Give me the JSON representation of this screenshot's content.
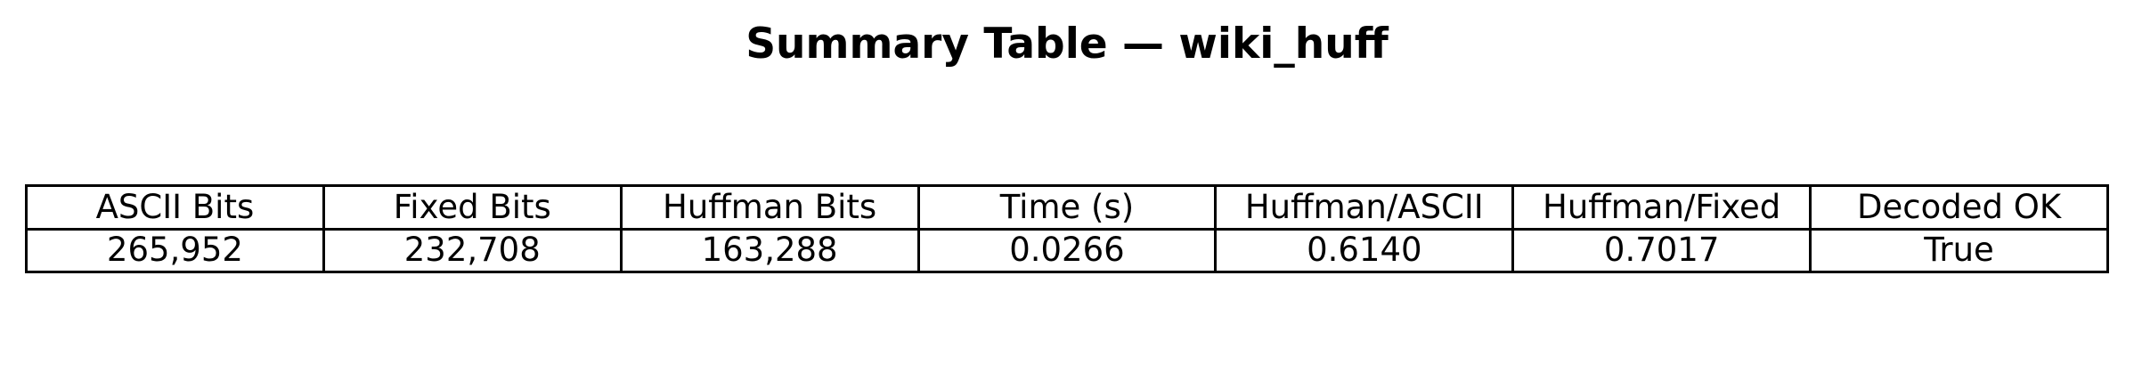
{
  "chart_data": {
    "type": "table",
    "title": "Summary Table — wiki_huff",
    "columns": [
      "ASCII Bits",
      "Fixed Bits",
      "Huffman Bits",
      "Time (s)",
      "Huffman/ASCII",
      "Huffman/Fixed",
      "Decoded OK"
    ],
    "rows": [
      [
        "265,952",
        "232,708",
        "163,288",
        "0.0266",
        "0.6140",
        "0.7017",
        "True"
      ]
    ]
  }
}
